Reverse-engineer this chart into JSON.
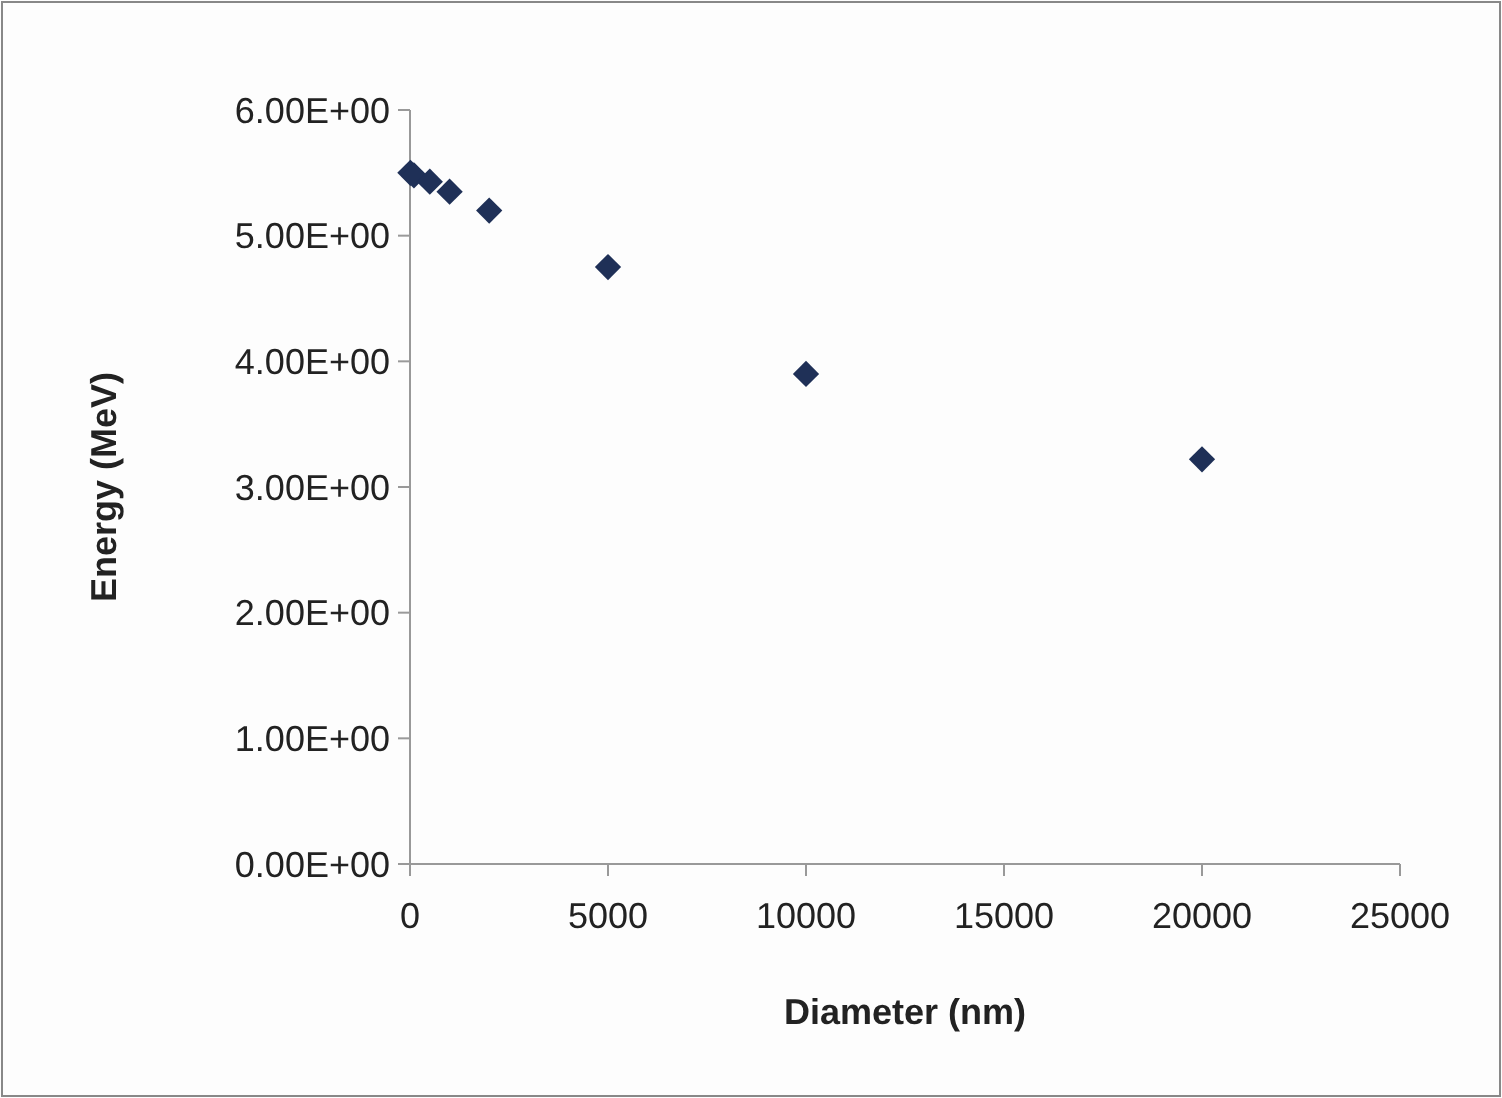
{
  "chart_data": {
    "type": "scatter",
    "xlabel": "Diameter (nm)",
    "ylabel": "Energy (MeV)",
    "x": [
      10,
      100,
      500,
      1000,
      2000,
      5000,
      10000,
      20000
    ],
    "values": [
      5.5,
      5.48,
      5.43,
      5.35,
      5.2,
      4.75,
      3.9,
      3.22
    ],
    "color": "#1f3057",
    "marker": "diamond",
    "grid": false,
    "xlim": [
      0,
      25000
    ],
    "xticks": [
      0,
      5000,
      10000,
      15000,
      20000,
      25000
    ],
    "ylim": [
      0,
      6
    ],
    "yticks": [
      {
        "value": 0,
        "label": "0.00E+00"
      },
      {
        "value": 1,
        "label": "1.00E+00"
      },
      {
        "value": 2,
        "label": "2.00E+00"
      },
      {
        "value": 3,
        "label": "3.00E+00"
      },
      {
        "value": 4,
        "label": "4.00E+00"
      },
      {
        "value": 5,
        "label": "5.00E+00"
      },
      {
        "value": 6,
        "label": "6.00E+00"
      }
    ]
  }
}
